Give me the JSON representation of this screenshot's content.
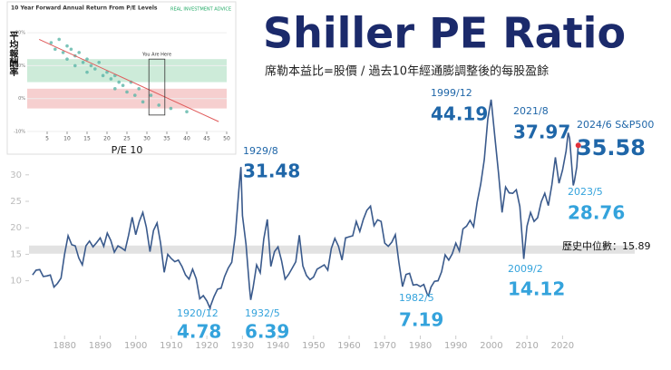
{
  "chart_data": [
    {
      "type": "line",
      "title": "Shiller PE Ratio",
      "subtitle": "席勒本益比=股價 / 過去10年經通膨調整後的每股盈餘",
      "color": "#3a5a8c",
      "x": [
        1871,
        1872,
        1873,
        1874,
        1875,
        1876,
        1877,
        1878,
        1879,
        1880,
        1881,
        1882,
        1883,
        1884,
        1885,
        1886,
        1887,
        1888,
        1889,
        1890,
        1891,
        1892,
        1893,
        1894,
        1895,
        1896,
        1897,
        1898,
        1899,
        1900,
        1901,
        1902,
        1903,
        1904,
        1905,
        1906,
        1907,
        1908,
        1909,
        1910,
        1911,
        1912,
        1913,
        1914,
        1915,
        1916,
        1917,
        1918,
        1919,
        1920,
        1920.92,
        1921,
        1922,
        1923,
        1924,
        1925,
        1926,
        1927,
        1928,
        1929,
        1929.58,
        1930,
        1931,
        1932,
        1932.33,
        1933,
        1934,
        1935,
        1936,
        1937,
        1938,
        1939,
        1940,
        1941,
        1942,
        1943,
        1944,
        1945,
        1946,
        1947,
        1948,
        1949,
        1950,
        1951,
        1952,
        1953,
        1954,
        1955,
        1956,
        1957,
        1958,
        1959,
        1960,
        1961,
        1962,
        1963,
        1964,
        1965,
        1966,
        1967,
        1968,
        1969,
        1970,
        1971,
        1972,
        1973,
        1974,
        1975,
        1976,
        1977,
        1978,
        1979,
        1980,
        1981,
        1982,
        1982.33,
        1983,
        1984,
        1985,
        1986,
        1987,
        1988,
        1989,
        1990,
        1991,
        1992,
        1993,
        1994,
        1995,
        1996,
        1997,
        1998,
        1999,
        1999.92,
        2000,
        2001,
        2002,
        2003,
        2004,
        2005,
        2006,
        2007,
        2008,
        2009,
        2009.08,
        2010,
        2011,
        2012,
        2013,
        2014,
        2015,
        2016,
        2017,
        2018,
        2019,
        2020,
        2021,
        2021.58,
        2022,
        2023,
        2023.33,
        2024,
        2024.42
      ],
      "values": [
        11.1,
        12.0,
        12.1,
        10.8,
        10.9,
        11.1,
        8.8,
        9.5,
        10.5,
        15.0,
        18.5,
        16.8,
        16.6,
        14.3,
        13.0,
        16.6,
        17.5,
        16.4,
        17.2,
        18.1,
        16.5,
        19.0,
        17.6,
        15.4,
        16.6,
        16.2,
        15.7,
        18.6,
        22.0,
        18.7,
        21.2,
        22.9,
        20.1,
        15.5,
        19.5,
        20.9,
        17.1,
        11.6,
        15.0,
        14.2,
        13.6,
        13.9,
        12.7,
        11.1,
        10.3,
        12.2,
        10.4,
        6.6,
        7.2,
        6.2,
        4.78,
        5.2,
        7.0,
        8.4,
        8.6,
        10.8,
        12.4,
        13.5,
        18.6,
        27.1,
        31.48,
        22.3,
        16.9,
        8.6,
        6.39,
        8.7,
        13.0,
        11.5,
        17.9,
        21.6,
        12.7,
        15.5,
        16.4,
        13.8,
        10.3,
        11.2,
        12.4,
        13.6,
        18.6,
        12.8,
        11.0,
        10.2,
        10.7,
        12.2,
        12.6,
        13.0,
        12.0,
        16.1,
        18.0,
        16.5,
        13.9,
        18.1,
        18.3,
        18.5,
        21.2,
        19.3,
        21.6,
        23.3,
        24.1,
        20.4,
        21.5,
        21.2,
        17.1,
        16.5,
        17.3,
        18.7,
        13.5,
        8.9,
        11.2,
        11.4,
        9.2,
        9.3,
        8.9,
        9.3,
        7.4,
        7.19,
        8.8,
        9.9,
        10.0,
        11.7,
        14.9,
        13.9,
        15.1,
        17.1,
        15.6,
        19.8,
        20.3,
        21.4,
        20.2,
        24.8,
        28.3,
        32.9,
        40.6,
        44.19,
        43.8,
        36.9,
        30.3,
        22.9,
        27.7,
        26.6,
        26.5,
        27.2,
        24.0,
        15.2,
        14.12,
        20.3,
        22.9,
        21.2,
        21.9,
        24.9,
        26.5,
        24.2,
        28.1,
        33.3,
        28.4,
        30.9,
        34.5,
        37.97,
        36.9,
        28.0,
        28.76,
        31.5,
        35.58
      ],
      "xlim": [
        1870,
        2025
      ],
      "xticks": [
        1880,
        1890,
        1900,
        1910,
        1920,
        1930,
        1940,
        1950,
        1960,
        1970,
        1980,
        1990,
        2000,
        2010,
        2020
      ],
      "ylim": [
        0,
        50
      ],
      "yticks": [
        10,
        15,
        20,
        25,
        30
      ],
      "median_label": "歷史中位數：",
      "median": 15.89,
      "annotations": [
        {
          "label": "1920/12",
          "value": 4.78,
          "color": "#34a3dc"
        },
        {
          "label": "1932/5",
          "value": 6.39,
          "color": "#34a3dc"
        },
        {
          "label": "1982/5",
          "value": 7.19,
          "color": "#34a3dc"
        },
        {
          "label": "2009/2",
          "value": 14.12,
          "color": "#34a3dc"
        },
        {
          "label": "1929/8",
          "value": 31.48,
          "color": "#1f66a8"
        },
        {
          "label": "1999/12",
          "value": 44.19,
          "color": "#1f66a8"
        },
        {
          "label": "2021/8",
          "value": 37.97,
          "color": "#1f66a8"
        },
        {
          "label": "2023/5",
          "value": 28.76,
          "color": "#34a3dc"
        },
        {
          "label": "2024/6 S&P500",
          "value": 35.58,
          "color": "#1f66a8"
        }
      ]
    },
    {
      "type": "scatter",
      "title": "10 Year Forward Annual Return From P/E Levels",
      "source": "REAL INVESTMENT ADVICE",
      "xlabel": "P/E 10",
      "ylabel": "平均報酬率",
      "marker": "You Are Here",
      "color": "#5bb5a8",
      "x": [
        6,
        7,
        8,
        9,
        10,
        10,
        11,
        12,
        12,
        13,
        14,
        15,
        15,
        16,
        17,
        18,
        19,
        20,
        21,
        22,
        22,
        23,
        24,
        25,
        26,
        27,
        28,
        29,
        31,
        33,
        36,
        40
      ],
      "values": [
        17,
        15,
        18,
        14,
        16,
        12,
        15,
        13,
        10,
        14,
        11,
        12,
        8,
        10,
        9,
        11,
        7,
        8,
        6,
        7,
        3,
        5,
        4,
        2,
        5,
        1,
        3,
        -1,
        1,
        -2,
        -3,
        -4
      ],
      "xlim": [
        0,
        50
      ],
      "xticks": [
        5,
        10,
        15,
        20,
        25,
        30,
        35,
        40,
        45,
        50
      ],
      "ylim": [
        -10,
        25
      ],
      "yticks": [
        {
          "value": 20,
          "label": "20%"
        },
        {
          "value": 10,
          "label": "10%"
        },
        {
          "value": 0,
          "label": "0%"
        },
        {
          "value": -10,
          "label": "-10%"
        }
      ]
    }
  ]
}
